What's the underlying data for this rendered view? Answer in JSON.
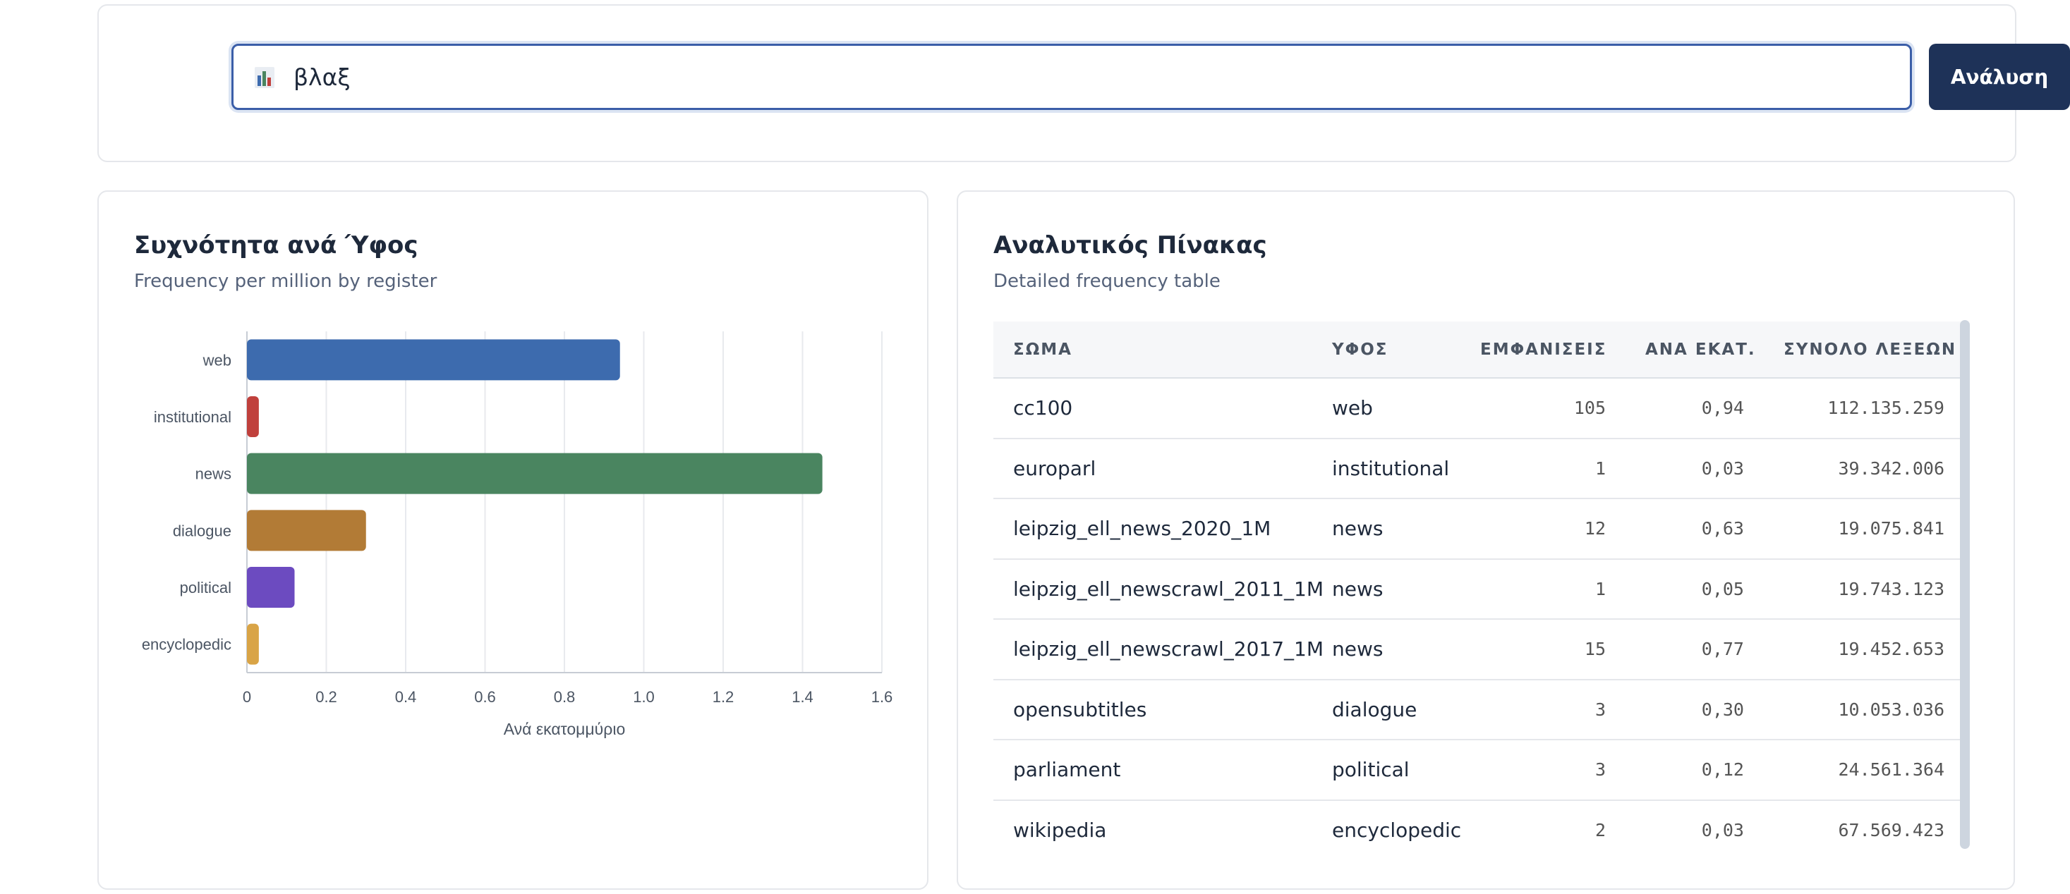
{
  "search": {
    "value": "βλαξ",
    "button_label": "Ανάλυση"
  },
  "chart_card": {
    "title": "Συχνότητα ανά Ύφος",
    "subtitle": "Frequency per million by register"
  },
  "chart_data": {
    "type": "bar",
    "orientation": "horizontal",
    "categories": [
      "web",
      "institutional",
      "news",
      "dialogue",
      "political",
      "encyclopedic"
    ],
    "values": [
      0.94,
      0.03,
      1.45,
      0.3,
      0.12,
      0.03
    ],
    "colors": [
      "#3d6bae",
      "#c0403c",
      "#4a8560",
      "#b27b36",
      "#6c4bc0",
      "#d9a446"
    ],
    "xlabel": "Ανά εκατομμύριο",
    "xlim": [
      0,
      1.6
    ],
    "xticks": [
      "0",
      "0.2",
      "0.4",
      "0.6",
      "0.8",
      "1.0",
      "1.2",
      "1.4",
      "1.6"
    ],
    "grid": true
  },
  "table_card": {
    "title": "Αναλυτικός Πίνακας",
    "subtitle": "Detailed frequency table",
    "headers": [
      "ΣΩΜΑ",
      "ΥΦΟΣ",
      "ΕΜΦΑΝΙΣΕΙΣ",
      "ΑΝΑ ΕΚΑΤ.",
      "ΣΥΝΟΛΟ ΛΕΞΕΩΝ"
    ],
    "rows": [
      [
        "cc100",
        "web",
        "105",
        "0,94",
        "112.135.259"
      ],
      [
        "europarl",
        "institutional",
        "1",
        "0,03",
        "39.342.006"
      ],
      [
        "leipzig_ell_news_2020_1M",
        "news",
        "12",
        "0,63",
        "19.075.841"
      ],
      [
        "leipzig_ell_newscrawl_2011_1M",
        "news",
        "1",
        "0,05",
        "19.743.123"
      ],
      [
        "leipzig_ell_newscrawl_2017_1M",
        "news",
        "15",
        "0,77",
        "19.452.653"
      ],
      [
        "opensubtitles",
        "dialogue",
        "3",
        "0,30",
        "10.053.036"
      ],
      [
        "parliament",
        "political",
        "3",
        "0,12",
        "24.561.364"
      ],
      [
        "wikipedia",
        "encyclopedic",
        "2",
        "0,03",
        "67.569.423"
      ]
    ]
  },
  "colors": {
    "accent": "#1e3258",
    "focus_border": "#3b5ea8"
  },
  "icons": {
    "search_prefix": "bar-chart-icon"
  }
}
